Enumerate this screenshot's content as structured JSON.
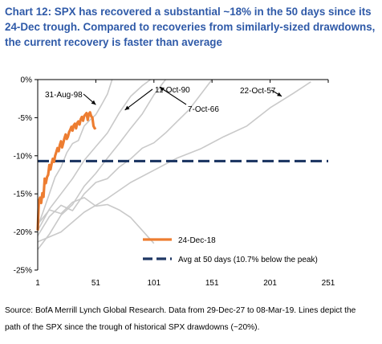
{
  "title_lines": [
    "Chart 12: SPX has recovered a substantial ~18% in the 50 days since its",
    "24-Dec trough. Compared to recoveries from similarly-sized drawdowns,",
    "the current recovery is faster than average"
  ],
  "source_lines": [
    "Source: BofA Merrill Lynch Global Research. Data from 29-Dec-27 to 08-Mar-19. Lines depict the",
    "path of the SPX since the trough of historical SPX drawdowns (~20%)."
  ],
  "colors": {
    "title": "#2f5aa8",
    "current": "#ed7d31",
    "average": "#1f3864",
    "history": "#c9c9c9"
  },
  "chart_data": {
    "type": "line",
    "xlim": [
      1,
      251
    ],
    "ylim": [
      -25,
      0
    ],
    "x_ticks": [
      "1",
      "51",
      "101",
      "151",
      "201",
      "251"
    ],
    "y_ticks": [
      "0%",
      "-5%",
      "-10%",
      "-15%",
      "-20%",
      "-25%"
    ],
    "series": [
      {
        "name": "24-Dec-18",
        "x": [
          1,
          2,
          3,
          4,
          5,
          6,
          7,
          8,
          9,
          10,
          11,
          12,
          13,
          14,
          15,
          16,
          17,
          18,
          19,
          20,
          21,
          22,
          23,
          24,
          25,
          26,
          27,
          28,
          29,
          30,
          31,
          32,
          33,
          34,
          35,
          36,
          37,
          38,
          39,
          40,
          41,
          42,
          43,
          44,
          45,
          46,
          47,
          48,
          49,
          50,
          51
        ],
        "y": [
          -19.8,
          -16.0,
          -15.5,
          -16.2,
          -14.9,
          -15.4,
          -13.0,
          -13.6,
          -12.8,
          -12.5,
          -11.2,
          -11.8,
          -11.0,
          -10.4,
          -10.8,
          -10.0,
          -9.5,
          -9.0,
          -9.4,
          -8.6,
          -8.1,
          -8.9,
          -8.3,
          -7.7,
          -7.2,
          -7.8,
          -7.5,
          -6.9,
          -6.6,
          -6.2,
          -6.7,
          -6.0,
          -5.8,
          -6.4,
          -5.7,
          -5.5,
          -5.9,
          -5.2,
          -4.9,
          -5.4,
          -4.8,
          -4.6,
          -4.4,
          -5.3,
          -4.5,
          -4.3,
          -4.8,
          -5.0,
          -6.1,
          -6.4,
          -6.3
        ]
      },
      {
        "name": "Avg at 50 days (10.7% below the peak)",
        "x": [
          1,
          251
        ],
        "y": [
          -10.7,
          -10.7
        ]
      }
    ],
    "historical": [
      {
        "label": "31-Aug-98",
        "x": [
          1,
          6,
          11,
          16,
          21,
          26,
          31,
          36,
          41,
          46,
          51,
          56,
          61,
          65
        ],
        "y": [
          -19.3,
          -17.2,
          -15.0,
          -12.8,
          -11.5,
          -9.6,
          -8.4,
          -8.0,
          -6.1,
          -5.3,
          -4.6,
          -3.3,
          -1.9,
          0.0
        ]
      },
      {
        "label": "11-Oct-90",
        "x": [
          1,
          11,
          21,
          31,
          41,
          51,
          61,
          71,
          81,
          91,
          98
        ],
        "y": [
          -19.8,
          -17.0,
          -15.0,
          -13.0,
          -10.6,
          -8.8,
          -7.0,
          -4.4,
          -2.2,
          -0.8,
          0.0
        ]
      },
      {
        "label": "7-Oct-66",
        "x": [
          1,
          11,
          21,
          31,
          41,
          51,
          61,
          71,
          81,
          91,
          101,
          111,
          121,
          131,
          141,
          151
        ],
        "y": [
          -20.5,
          -18.0,
          -16.5,
          -17.2,
          -15.0,
          -13.5,
          -13.0,
          -11.5,
          -10.4,
          -9.0,
          -8.3,
          -7.0,
          -5.5,
          -4.0,
          -2.0,
          0.0
        ]
      },
      {
        "label": "22-Oct-57",
        "x": [
          1,
          21,
          41,
          61,
          81,
          101,
          121,
          141,
          161,
          181,
          201,
          221,
          236
        ],
        "y": [
          -21.3,
          -20.0,
          -17.4,
          -15.6,
          -13.5,
          -11.9,
          -10.3,
          -9.1,
          -7.5,
          -6.1,
          -3.7,
          -1.8,
          -0.3
        ]
      },
      {
        "label": "",
        "x": [
          1,
          11,
          21,
          31,
          41,
          51,
          61,
          71,
          81,
          91,
          101,
          111
        ],
        "y": [
          -22.3,
          -20.3,
          -17.8,
          -16.4,
          -14.0,
          -12.3,
          -10.3,
          -8.4,
          -6.4,
          -4.5,
          -2.0,
          0.0
        ]
      },
      {
        "label": "",
        "x": [
          1,
          11,
          21,
          31,
          41,
          51,
          61,
          71,
          81,
          91,
          101
        ],
        "y": [
          -19.0,
          -17.1,
          -17.6,
          -16.1,
          -15.5,
          -16.6,
          -16.4,
          -17.1,
          -18.1,
          -19.8,
          -21.5
        ]
      }
    ],
    "annotations": [
      {
        "text": "31-Aug-98",
        "target_x": 51,
        "target_y": -3.3
      },
      {
        "text": "11-Oct-90",
        "target_x": 76,
        "target_y": -4.0
      },
      {
        "text": "7-Oct-66",
        "target_x": 106,
        "target_y": -1.0
      },
      {
        "text": "22-Oct-57",
        "target_x": 211,
        "target_y": -2.2
      }
    ],
    "legend_position": "bottom-right",
    "grid": false
  }
}
